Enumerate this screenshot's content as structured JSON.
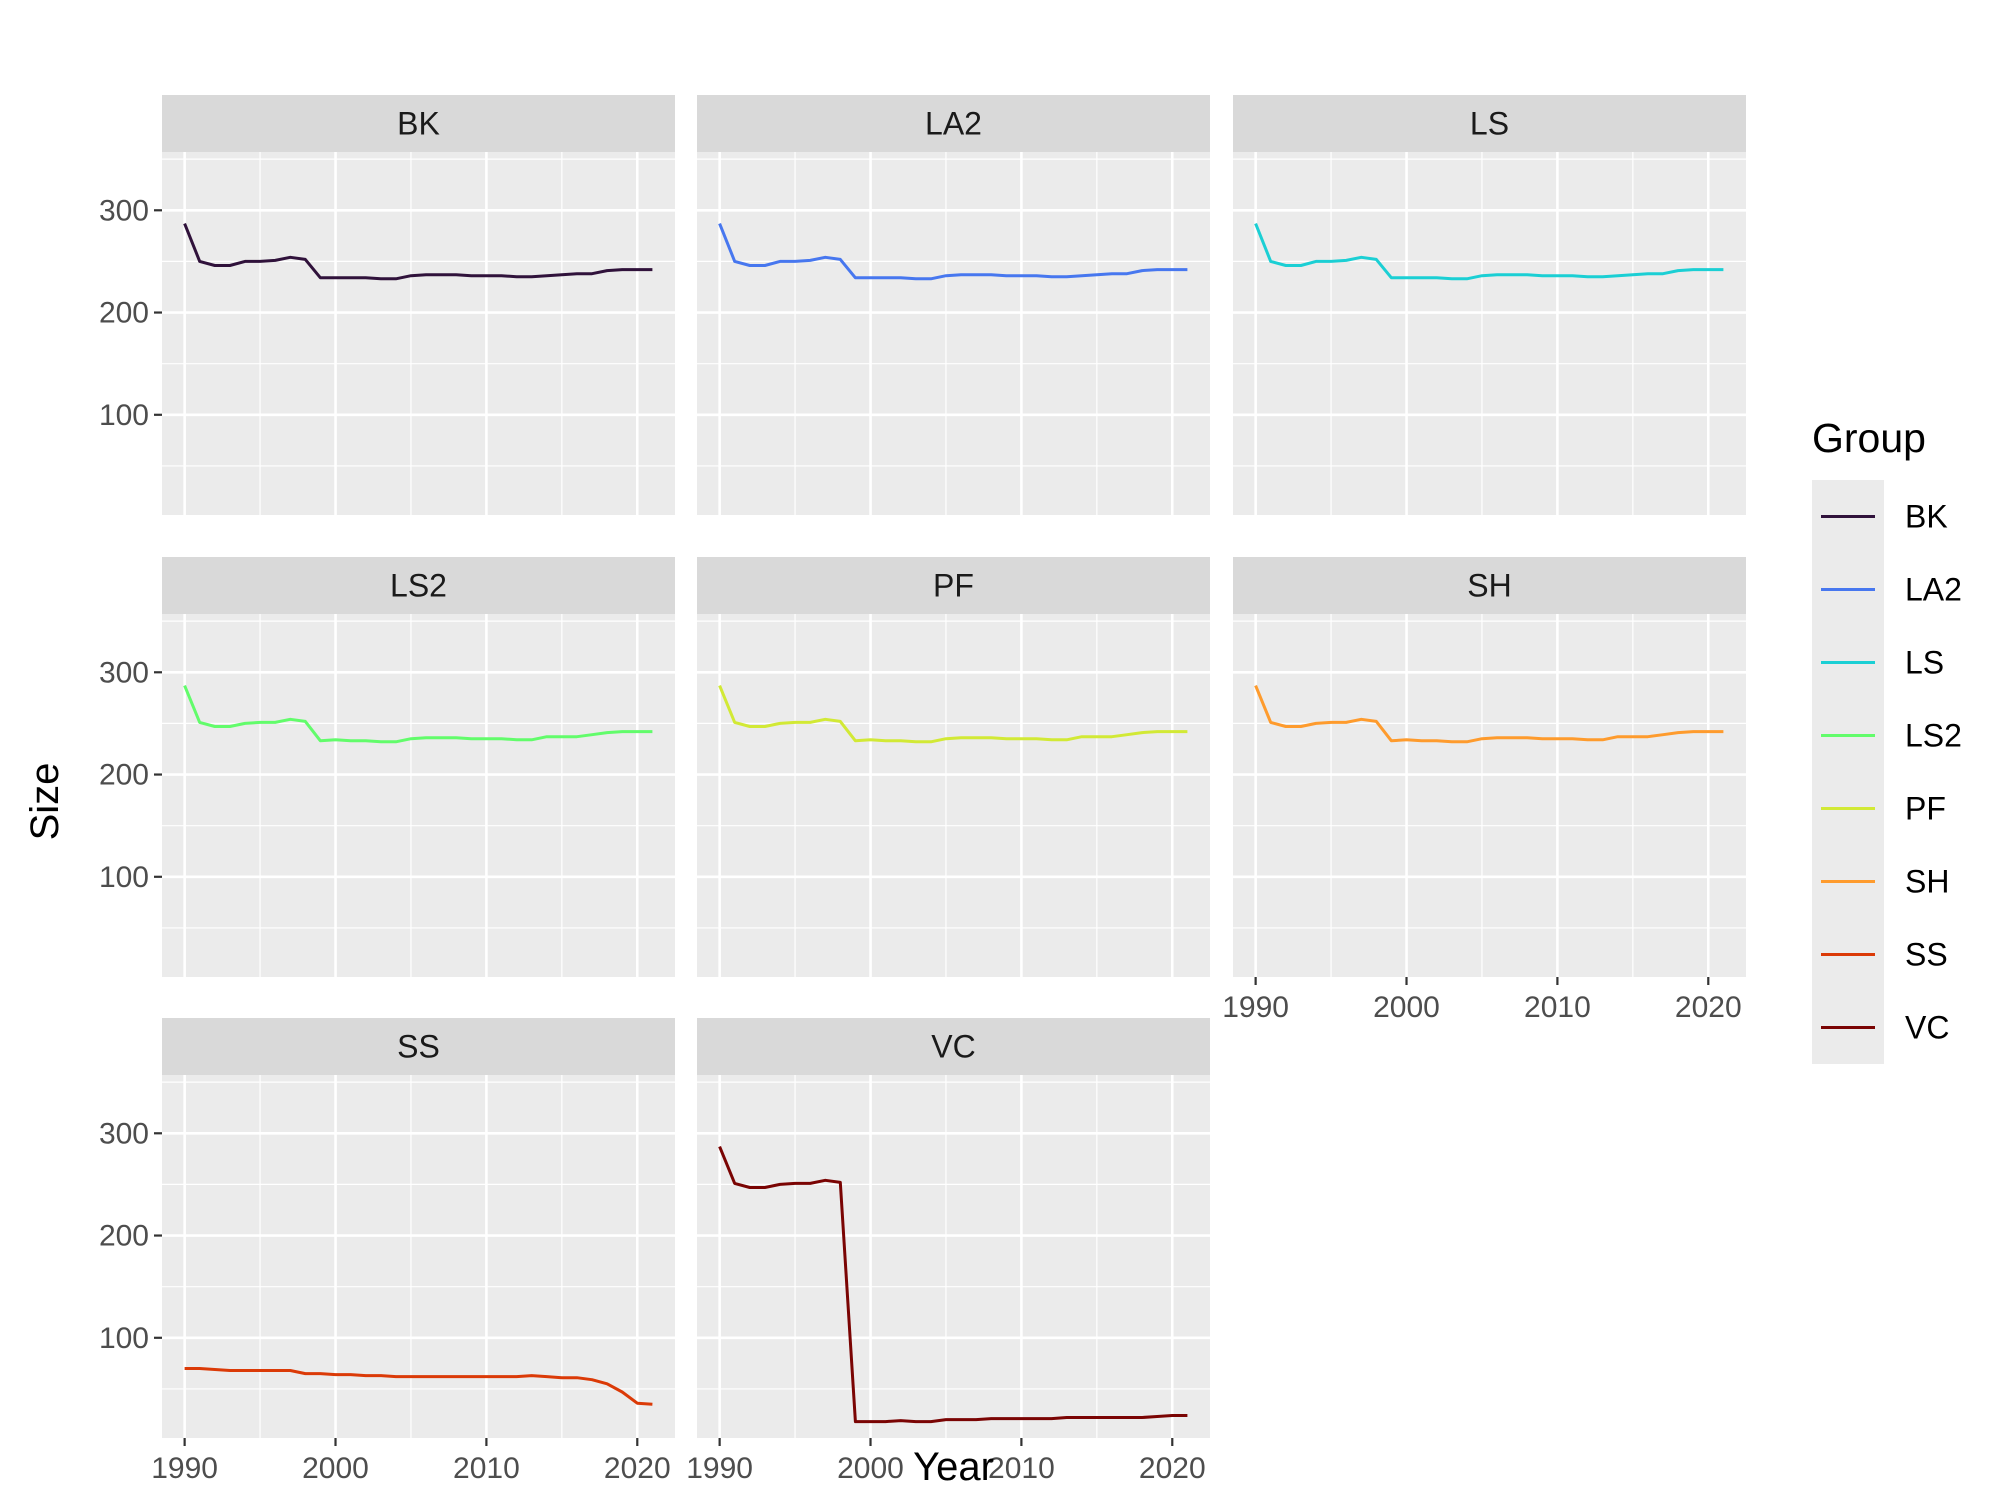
{
  "chart_data": {
    "type": "line",
    "facet": "wrap",
    "xlabel": "Year",
    "ylabel": "Size",
    "xlim": [
      1988.5,
      2022.5
    ],
    "ylim": [
      2,
      357
    ],
    "xticks": [
      1990,
      2000,
      2010,
      2020
    ],
    "xtick_labels": [
      "1990",
      "2000",
      "2010",
      "2020"
    ],
    "yticks": [
      100,
      200,
      300
    ],
    "ytick_labels": [
      "100",
      "200",
      "300"
    ],
    "grid": true,
    "legend": {
      "title": "Group",
      "placement": "right",
      "entries": [
        "BK",
        "LA2",
        "LS",
        "LS2",
        "PF",
        "SH",
        "SS",
        "VC"
      ]
    },
    "x": [
      1990,
      1991,
      1992,
      1993,
      1994,
      1995,
      1996,
      1997,
      1998,
      1999,
      2000,
      2001,
      2002,
      2003,
      2004,
      2005,
      2006,
      2007,
      2008,
      2009,
      2010,
      2011,
      2012,
      2013,
      2014,
      2015,
      2016,
      2017,
      2018,
      2019,
      2020,
      2021
    ],
    "series": [
      {
        "name": "BK",
        "color": "#30123b",
        "values": [
          287,
          250,
          246,
          246,
          250,
          250,
          251,
          254,
          252,
          234,
          234,
          234,
          234,
          233,
          233,
          236,
          237,
          237,
          237,
          236,
          236,
          236,
          235,
          235,
          236,
          237,
          238,
          238,
          241,
          242,
          242,
          242
        ]
      },
      {
        "name": "LA2",
        "color": "#4777ef",
        "values": [
          287,
          250,
          246,
          246,
          250,
          250,
          251,
          254,
          252,
          234,
          234,
          234,
          234,
          233,
          233,
          236,
          237,
          237,
          237,
          236,
          236,
          236,
          235,
          235,
          236,
          237,
          238,
          238,
          241,
          242,
          242,
          242
        ]
      },
      {
        "name": "LS",
        "color": "#1bcfd4",
        "values": [
          287,
          250,
          246,
          246,
          250,
          250,
          251,
          254,
          252,
          234,
          234,
          234,
          234,
          233,
          233,
          236,
          237,
          237,
          237,
          236,
          236,
          236,
          235,
          235,
          236,
          237,
          238,
          238,
          241,
          242,
          242,
          242
        ]
      },
      {
        "name": "LS2",
        "color": "#62fc6b",
        "values": [
          287,
          251,
          247,
          247,
          250,
          251,
          251,
          254,
          252,
          233,
          234,
          233,
          233,
          232,
          232,
          235,
          236,
          236,
          236,
          235,
          235,
          235,
          234,
          234,
          237,
          237,
          237,
          239,
          241,
          242,
          242,
          242
        ]
      },
      {
        "name": "PF",
        "color": "#d2e935",
        "values": [
          287,
          251,
          247,
          247,
          250,
          251,
          251,
          254,
          252,
          233,
          234,
          233,
          233,
          232,
          232,
          235,
          236,
          236,
          236,
          235,
          235,
          235,
          234,
          234,
          237,
          237,
          237,
          239,
          241,
          242,
          242,
          242
        ]
      },
      {
        "name": "SH",
        "color": "#fe9b2d",
        "values": [
          287,
          251,
          247,
          247,
          250,
          251,
          251,
          254,
          252,
          233,
          234,
          233,
          233,
          232,
          232,
          235,
          236,
          236,
          236,
          235,
          235,
          235,
          234,
          234,
          237,
          237,
          237,
          239,
          241,
          242,
          242,
          242
        ]
      },
      {
        "name": "SS",
        "color": "#db3a07",
        "values": [
          70,
          70,
          69,
          68,
          68,
          68,
          68,
          68,
          65,
          65,
          64,
          64,
          63,
          63,
          62,
          62,
          62,
          62,
          62,
          62,
          62,
          62,
          62,
          63,
          62,
          61,
          61,
          59,
          55,
          47,
          36,
          35
        ]
      },
      {
        "name": "VC",
        "color": "#7a0403",
        "values": [
          287,
          251,
          247,
          247,
          250,
          251,
          251,
          254,
          252,
          18,
          18,
          18,
          19,
          18,
          18,
          20,
          20,
          20,
          21,
          21,
          21,
          21,
          21,
          22,
          22,
          22,
          22,
          22,
          22,
          23,
          24,
          24
        ]
      }
    ]
  }
}
